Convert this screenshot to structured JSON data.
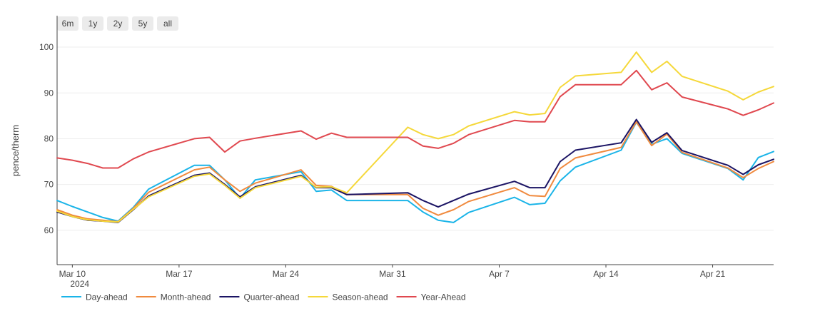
{
  "range_selector": {
    "buttons": [
      "6m",
      "1y",
      "2y",
      "5y",
      "all"
    ]
  },
  "chart_data": {
    "type": "line",
    "title": "",
    "xlabel": "",
    "ylabel": "pence/therm",
    "ylim": [
      52.5,
      102.5
    ],
    "yticks": [
      60,
      70,
      80,
      90,
      100
    ],
    "xlim": [
      "2024-03-09",
      "2024-04-25"
    ],
    "xticks": [
      {
        "date": "2024-03-10",
        "label": "Mar 10",
        "sublabel": "2024"
      },
      {
        "date": "2024-03-17",
        "label": "Mar 17",
        "sublabel": ""
      },
      {
        "date": "2024-03-24",
        "label": "Mar 24",
        "sublabel": ""
      },
      {
        "date": "2024-03-31",
        "label": "Mar 31",
        "sublabel": ""
      },
      {
        "date": "2024-04-07",
        "label": "Apr 7",
        "sublabel": ""
      },
      {
        "date": "2024-04-14",
        "label": "Apr 14",
        "sublabel": ""
      },
      {
        "date": "2024-04-21",
        "label": "Apr 21",
        "sublabel": ""
      }
    ],
    "grid": "horizontal",
    "legend": "bottom",
    "x": [
      "2024-03-09",
      "2024-03-10",
      "2024-03-11",
      "2024-03-12",
      "2024-03-13",
      "2024-03-14",
      "2024-03-15",
      "2024-03-18",
      "2024-03-19",
      "2024-03-20",
      "2024-03-21",
      "2024-03-22",
      "2024-03-25",
      "2024-03-26",
      "2024-03-27",
      "2024-03-28",
      "2024-04-01",
      "2024-04-02",
      "2024-04-03",
      "2024-04-04",
      "2024-04-05",
      "2024-04-08",
      "2024-04-09",
      "2024-04-10",
      "2024-04-11",
      "2024-04-12",
      "2024-04-15",
      "2024-04-16",
      "2024-04-17",
      "2024-04-18",
      "2024-04-19",
      "2024-04-22",
      "2024-04-23",
      "2024-04-24",
      "2024-04-25"
    ],
    "series": [
      {
        "name": "Day-ahead",
        "color": "#1ab4e8",
        "values": [
          66.5,
          65.2,
          64.0,
          62.8,
          62.0,
          65.0,
          69.0,
          74.2,
          74.2,
          71.0,
          67.0,
          71.0,
          72.8,
          68.5,
          68.8,
          66.5,
          66.5,
          64.0,
          62.2,
          61.7,
          63.9,
          67.2,
          65.6,
          65.9,
          70.8,
          73.8,
          77.5,
          83.6,
          78.8,
          80.0,
          76.8,
          73.5,
          71.0,
          75.9,
          77.2
        ]
      },
      {
        "name": "Month-ahead",
        "color": "#f08a3e",
        "values": [
          64.5,
          63.3,
          62.5,
          62.2,
          61.9,
          64.8,
          68.3,
          73.2,
          73.8,
          71.0,
          68.5,
          70.3,
          73.2,
          69.8,
          69.6,
          67.8,
          67.8,
          64.8,
          63.3,
          64.5,
          66.3,
          69.3,
          67.6,
          67.4,
          73.5,
          75.8,
          78.1,
          83.7,
          78.5,
          81.0,
          77.0,
          73.6,
          71.5,
          73.5,
          75.0
        ]
      },
      {
        "name": "Quarter-ahead",
        "color": "#1b1464",
        "values": [
          64.0,
          63.0,
          62.2,
          62.0,
          61.7,
          64.5,
          67.5,
          72.0,
          72.5,
          70.0,
          67.3,
          69.5,
          72.0,
          69.3,
          69.3,
          67.8,
          68.2,
          66.5,
          65.1,
          66.5,
          67.9,
          70.7,
          69.3,
          69.3,
          75.0,
          77.5,
          79.1,
          84.2,
          79.2,
          81.3,
          77.4,
          74.2,
          72.2,
          74.3,
          75.5
        ]
      },
      {
        "name": "Season-ahead",
        "color": "#f5d83a",
        "values": [
          64.2,
          63.0,
          62.3,
          62.0,
          61.8,
          64.6,
          67.3,
          71.8,
          72.3,
          69.8,
          67.0,
          69.3,
          71.8,
          69.4,
          69.5,
          68.2,
          82.5,
          80.9,
          80.0,
          80.9,
          82.8,
          85.9,
          85.2,
          85.5,
          91.2,
          93.7,
          94.5,
          98.9,
          94.5,
          96.9,
          93.6,
          90.4,
          88.5,
          90.2,
          91.4
        ]
      },
      {
        "name": "Year-Ahead",
        "color": "#e0484f",
        "values": [
          75.8,
          75.3,
          74.6,
          73.6,
          73.6,
          75.6,
          77.1,
          80.0,
          80.3,
          77.1,
          79.5,
          80.1,
          81.7,
          79.9,
          81.2,
          80.3,
          80.3,
          78.4,
          77.9,
          79.0,
          80.9,
          84.0,
          83.7,
          83.7,
          89.2,
          91.8,
          91.8,
          94.9,
          90.7,
          92.2,
          89.1,
          86.5,
          85.1,
          86.3,
          87.8
        ]
      }
    ]
  }
}
